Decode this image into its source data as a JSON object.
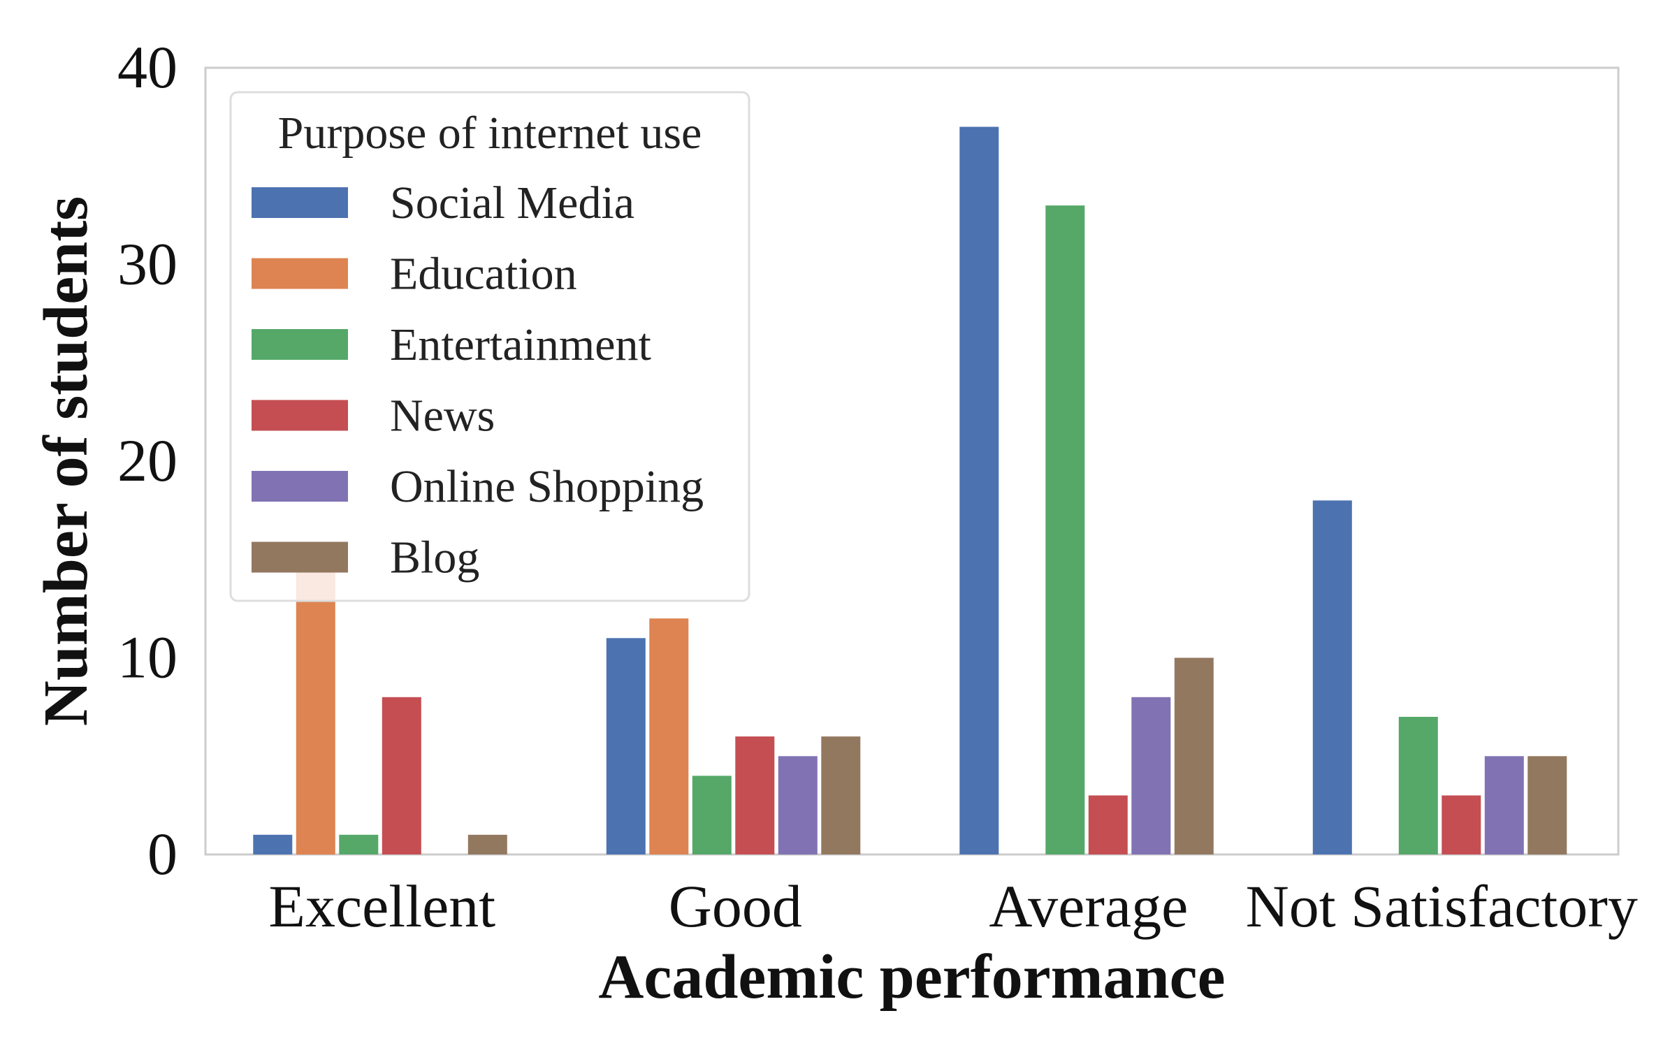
{
  "chart_data": {
    "type": "bar",
    "title": "",
    "xlabel": "Academic performance",
    "ylabel": "Number of students",
    "ylim": [
      0,
      40
    ],
    "yticks": [
      0,
      10,
      20,
      30,
      40
    ],
    "grid": false,
    "legend": {
      "title": "Purpose of internet use",
      "placement": "top-left"
    },
    "categories": [
      "Excellent",
      "Good",
      "Average",
      "Not Satisfactory"
    ],
    "series": [
      {
        "name": "Social Media",
        "color": "#4c72b0",
        "values": [
          1,
          11,
          37,
          18
        ]
      },
      {
        "name": "Education",
        "color": "#dd8452",
        "values": [
          15,
          12,
          0,
          0
        ]
      },
      {
        "name": "Entertainment",
        "color": "#55a868",
        "values": [
          1,
          4,
          33,
          7
        ]
      },
      {
        "name": "News",
        "color": "#c44e52",
        "values": [
          8,
          6,
          3,
          3
        ]
      },
      {
        "name": "Online Shopping",
        "color": "#8172b3",
        "values": [
          0,
          5,
          8,
          5
        ]
      },
      {
        "name": "Blog",
        "color": "#937860",
        "values": [
          1,
          6,
          10,
          5
        ]
      }
    ]
  }
}
